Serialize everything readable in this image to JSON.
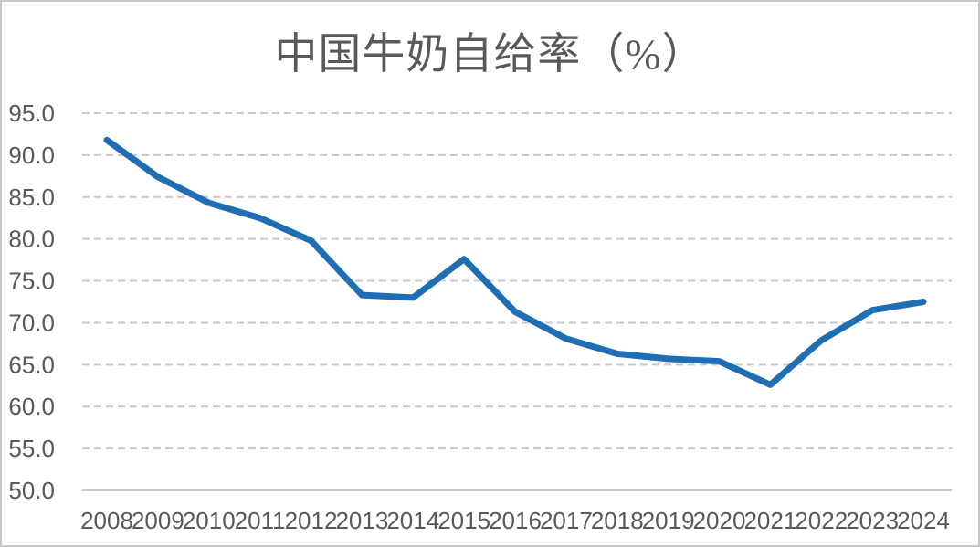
{
  "chart_data": {
    "type": "line",
    "title": "中国牛奶自给率（%）",
    "xlabel": "",
    "ylabel": "",
    "categories": [
      "2008",
      "2009",
      "2010",
      "2011",
      "2012",
      "2013",
      "2014",
      "2015",
      "2016",
      "2017",
      "2018",
      "2019",
      "2020",
      "2021",
      "2022",
      "2023",
      "2024"
    ],
    "series": [
      {
        "name": "中国牛奶自给率",
        "values": [
          91.8,
          87.4,
          84.3,
          82.5,
          79.8,
          73.3,
          73.0,
          77.6,
          71.3,
          68.1,
          66.3,
          65.7,
          65.4,
          62.6,
          67.9,
          71.5,
          72.5
        ]
      }
    ],
    "ylim": [
      50,
      95
    ],
    "yticks": [
      {
        "value": 95,
        "label": "95.0"
      },
      {
        "value": 90,
        "label": "90.0"
      },
      {
        "value": 85,
        "label": "85.0"
      },
      {
        "value": 80,
        "label": "80.0"
      },
      {
        "value": 75,
        "label": "75.0"
      },
      {
        "value": 70,
        "label": "70.0"
      },
      {
        "value": 65,
        "label": "65.0"
      },
      {
        "value": 60,
        "label": "60.0"
      },
      {
        "value": 55,
        "label": "55.0"
      },
      {
        "value": 50,
        "label": "50.0"
      }
    ],
    "grid": "horizontal-dashed",
    "legend": "none",
    "colors": {
      "line": "#1f6eb4",
      "gridline": "#c9c9c9",
      "axis_line": "#c9c9c9",
      "tick_label": "#595959",
      "title": "#595959",
      "background": "#ffffff",
      "frame_border": "#c9c9c9"
    }
  }
}
